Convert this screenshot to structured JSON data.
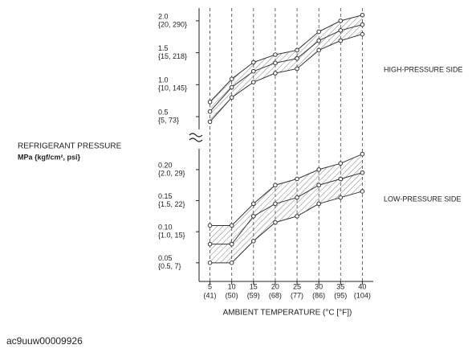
{
  "y_axis_title": "REFRIGERANT PRESSURE",
  "y_axis_unit": "MPa {kgf/cm², psi}",
  "x_axis_title": "AMBIENT TEMPERATURE  (°C [°F])",
  "image_id": "ac9uuw00009926",
  "chart_data": [
    {
      "type": "line",
      "label": "HIGH-PRESSURE SIDE",
      "x": [
        5,
        10,
        15,
        20,
        25,
        30,
        35,
        40
      ],
      "xlim": [
        2.5,
        42.5
      ],
      "ylim": [
        0.4,
        2.2
      ],
      "yticks": [
        {
          "value": 2,
          "label": "2.0"
        },
        1.5,
        {
          "value": 1,
          "label": "1.0"
        },
        0.5
      ],
      "ytick_sublabels": [
        "{20, 290}",
        "{15, 218}",
        "{10, 145}",
        "{5, 73}"
      ],
      "series": [
        {
          "color": "#333333",
          "values": [
            0.73,
            1.09,
            1.35,
            1.47,
            1.54,
            1.83,
            2.0,
            2.09
          ]
        },
        {
          "color": "#333333",
          "values": [
            0.58,
            0.96,
            1.21,
            1.34,
            1.41,
            1.69,
            1.85,
            1.94
          ]
        },
        {
          "color": "#333333",
          "values": [
            0.42,
            0.8,
            1.04,
            1.18,
            1.25,
            1.54,
            1.69,
            1.79
          ]
        }
      ]
    },
    {
      "type": "line",
      "label": "LOW-PRESSURE SIDE",
      "x": [
        5,
        10,
        15,
        20,
        25,
        30,
        35,
        40
      ],
      "xlim": [
        2.5,
        42.5
      ],
      "xticks": [
        5,
        10,
        15,
        20,
        25,
        30,
        35,
        40
      ],
      "xtick_sublabels": [
        "(41)",
        "(50)",
        "(59)",
        "(68)",
        "(77)",
        "(86)",
        "(95)",
        "(104)"
      ],
      "grid": true,
      "ylim": [
        0.02,
        0.24
      ],
      "yticks": [
        {
          "value": 0.2,
          "label": "0.20"
        },
        0.15,
        {
          "value": 0.1,
          "label": "0.10"
        },
        0.05
      ],
      "ytick_sublabels": [
        "{2.0, 29}",
        "{1.5, 22}",
        "{1.0, 15}",
        "{0.5, 7}"
      ],
      "series": [
        {
          "color": "#333333",
          "values": [
            0.11,
            0.11,
            0.145,
            0.175,
            0.185,
            0.2,
            0.21,
            0.225
          ]
        },
        {
          "color": "#333333",
          "values": [
            0.08,
            0.08,
            0.125,
            0.145,
            0.155,
            0.175,
            0.185,
            0.195
          ]
        },
        {
          "color": "#333333",
          "values": [
            0.05,
            0.05,
            0.085,
            0.115,
            0.125,
            0.145,
            0.155,
            0.165
          ]
        }
      ]
    }
  ]
}
